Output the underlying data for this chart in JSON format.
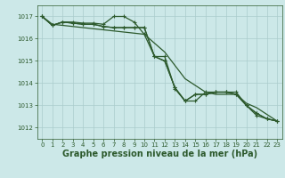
{
  "background_color": "#cce8e8",
  "grid_color": "#aacccc",
  "line_color": "#2d5a2d",
  "xlim": [
    -0.5,
    23.5
  ],
  "ylim": [
    1011.5,
    1017.5
  ],
  "yticks": [
    1012,
    1013,
    1014,
    1015,
    1016,
    1017
  ],
  "xticks": [
    0,
    1,
    2,
    3,
    4,
    5,
    6,
    7,
    8,
    9,
    10,
    11,
    12,
    13,
    14,
    15,
    16,
    17,
    18,
    19,
    20,
    21,
    22,
    23
  ],
  "xlabel": "Graphe pression niveau de la mer (hPa)",
  "title_fontsize": 7.0,
  "tick_fontsize": 5.0,
  "s1": [
    1017.0,
    1016.65,
    1016.6,
    1016.55,
    1016.5,
    1016.45,
    1016.4,
    1016.35,
    1016.3,
    1016.25,
    1016.2,
    1015.8,
    1015.4,
    1014.8,
    1014.2,
    1013.9,
    1013.6,
    1013.5,
    1013.5,
    1013.5,
    1013.1,
    1012.9,
    1012.6,
    1012.3
  ],
  "s2": [
    1017.0,
    1016.6,
    1016.75,
    1016.75,
    1016.7,
    1016.7,
    1016.65,
    1017.0,
    1017.0,
    1016.75,
    1016.2,
    1015.2,
    1015.2,
    1013.75,
    1013.2,
    1013.2,
    1013.6,
    1013.6,
    1013.6,
    1013.6,
    1013.0,
    1012.55,
    1012.4,
    1012.3
  ],
  "s3": [
    1017.0,
    1016.6,
    1016.75,
    1016.7,
    1016.65,
    1016.65,
    1016.55,
    1016.5,
    1016.5,
    1016.5,
    1016.5,
    1015.2,
    1015.0,
    1013.8,
    1013.2,
    1013.5,
    1013.5,
    1013.6,
    1013.6,
    1013.5,
    1013.0,
    1012.65,
    1012.4,
    1012.3
  ],
  "s4": [
    1017.0,
    1016.6,
    1016.75,
    1016.7,
    1016.65,
    1016.65,
    1016.55,
    1016.5,
    1016.5,
    1016.5,
    1016.5,
    1015.2,
    1015.0,
    1013.8,
    1013.2,
    1013.5,
    1013.5,
    1013.6,
    1013.6,
    1013.5,
    1013.0,
    1012.65,
    1012.4,
    1012.3
  ]
}
